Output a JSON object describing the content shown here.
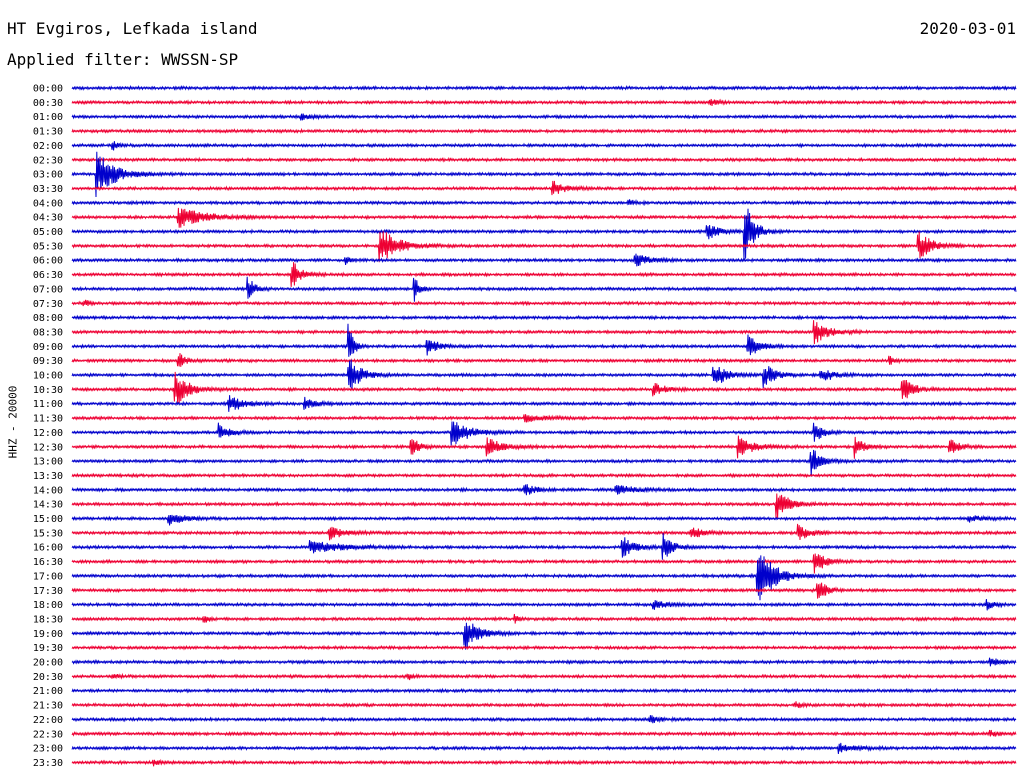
{
  "header": {
    "station": "HT Evgiros, Lefkada island",
    "date": "2020-03-01",
    "filter": "Applied filter: WWSSN-SP"
  },
  "chart_data": {
    "type": "line",
    "title": "HT Evgiros, Lefkada island",
    "ylabel": "HHZ - 20000",
    "rows": [
      "00:00",
      "00:30",
      "01:00",
      "01:30",
      "02:00",
      "02:30",
      "03:00",
      "03:30",
      "04:00",
      "04:30",
      "05:00",
      "05:30",
      "06:00",
      "06:30",
      "07:00",
      "07:30",
      "08:00",
      "08:30",
      "09:00",
      "09:30",
      "10:00",
      "10:30",
      "11:00",
      "11:30",
      "12:00",
      "12:30",
      "13:00",
      "13:30",
      "14:00",
      "14:30",
      "15:00",
      "15:30",
      "16:00",
      "16:30",
      "17:00",
      "17:30",
      "18:00",
      "18:30",
      "19:00",
      "19:30",
      "20:00",
      "20:30",
      "21:00",
      "21:30",
      "22:00",
      "22:30",
      "23:00",
      "23:30"
    ],
    "row_colors": [
      "#0000cc",
      "#ee0033"
    ],
    "x_range_minutes": [
      0,
      30
    ],
    "grid": false,
    "events": [
      {
        "row": "00:30",
        "minute": 20.3,
        "amp": 0.25,
        "dur": 0.6
      },
      {
        "row": "01:00",
        "minute": 7.3,
        "amp": 0.3,
        "dur": 0.6
      },
      {
        "row": "02:00",
        "minute": 1.3,
        "amp": 0.5,
        "dur": 0.3
      },
      {
        "row": "03:00",
        "minute": 0.8,
        "amp": 2.2,
        "dur": 1.2
      },
      {
        "row": "03:30",
        "minute": 15.3,
        "amp": 0.7,
        "dur": 0.8
      },
      {
        "row": "03:30",
        "minute": 30.0,
        "amp": 0.4,
        "dur": 0.4
      },
      {
        "row": "04:00",
        "minute": 17.7,
        "amp": 0.4,
        "dur": 0.3
      },
      {
        "row": "04:30",
        "minute": 3.4,
        "amp": 1.0,
        "dur": 1.8
      },
      {
        "row": "05:00",
        "minute": 20.2,
        "amp": 0.8,
        "dur": 0.8
      },
      {
        "row": "05:00",
        "minute": 21.4,
        "amp": 3.0,
        "dur": 0.6
      },
      {
        "row": "05:30",
        "minute": 9.8,
        "amp": 1.8,
        "dur": 1.2
      },
      {
        "row": "05:30",
        "minute": 26.9,
        "amp": 1.4,
        "dur": 0.9
      },
      {
        "row": "06:00",
        "minute": 17.9,
        "amp": 0.6,
        "dur": 1.0
      },
      {
        "row": "06:00",
        "minute": 8.7,
        "amp": 0.4,
        "dur": 0.4
      },
      {
        "row": "06:30",
        "minute": 7.0,
        "amp": 1.3,
        "dur": 0.7
      },
      {
        "row": "07:00",
        "minute": 5.6,
        "amp": 1.4,
        "dur": 0.4
      },
      {
        "row": "07:00",
        "minute": 10.9,
        "amp": 1.4,
        "dur": 0.3
      },
      {
        "row": "07:00",
        "minute": 30.0,
        "amp": 0.4,
        "dur": 0.3
      },
      {
        "row": "07:30",
        "minute": 0.4,
        "amp": 0.3,
        "dur": 0.4
      },
      {
        "row": "08:30",
        "minute": 23.6,
        "amp": 1.2,
        "dur": 0.9
      },
      {
        "row": "09:00",
        "minute": 8.8,
        "amp": 2.6,
        "dur": 0.3
      },
      {
        "row": "09:00",
        "minute": 11.3,
        "amp": 0.9,
        "dur": 0.7
      },
      {
        "row": "09:00",
        "minute": 21.5,
        "amp": 1.2,
        "dur": 0.7
      },
      {
        "row": "09:30",
        "minute": 3.4,
        "amp": 0.8,
        "dur": 0.4
      },
      {
        "row": "09:30",
        "minute": 26.0,
        "amp": 0.4,
        "dur": 0.4
      },
      {
        "row": "10:00",
        "minute": 8.8,
        "amp": 1.8,
        "dur": 0.8
      },
      {
        "row": "10:00",
        "minute": 20.4,
        "amp": 1.3,
        "dur": 0.8
      },
      {
        "row": "10:00",
        "minute": 22.0,
        "amp": 1.2,
        "dur": 0.7
      },
      {
        "row": "10:00",
        "minute": 23.8,
        "amp": 0.8,
        "dur": 0.8
      },
      {
        "row": "10:30",
        "minute": 3.3,
        "amp": 1.9,
        "dur": 0.8
      },
      {
        "row": "10:30",
        "minute": 18.5,
        "amp": 0.6,
        "dur": 0.8
      },
      {
        "row": "10:30",
        "minute": 26.4,
        "amp": 1.3,
        "dur": 0.7
      },
      {
        "row": "11:00",
        "minute": 5.0,
        "amp": 0.9,
        "dur": 1.0
      },
      {
        "row": "11:00",
        "minute": 7.4,
        "amp": 0.6,
        "dur": 0.8
      },
      {
        "row": "11:30",
        "minute": 14.4,
        "amp": 0.4,
        "dur": 1.0
      },
      {
        "row": "12:00",
        "minute": 4.7,
        "amp": 0.9,
        "dur": 0.7
      },
      {
        "row": "12:00",
        "minute": 12.1,
        "amp": 1.3,
        "dur": 1.1
      },
      {
        "row": "12:00",
        "minute": 23.6,
        "amp": 1.2,
        "dur": 0.5
      },
      {
        "row": "12:30",
        "minute": 10.8,
        "amp": 1.0,
        "dur": 0.5
      },
      {
        "row": "12:30",
        "minute": 13.2,
        "amp": 0.9,
        "dur": 1.0
      },
      {
        "row": "12:30",
        "minute": 21.2,
        "amp": 1.2,
        "dur": 0.9
      },
      {
        "row": "12:30",
        "minute": 24.9,
        "amp": 1.1,
        "dur": 0.5
      },
      {
        "row": "12:30",
        "minute": 27.9,
        "amp": 0.8,
        "dur": 0.6
      },
      {
        "row": "13:00",
        "minute": 23.5,
        "amp": 1.5,
        "dur": 0.6
      },
      {
        "row": "14:00",
        "minute": 14.4,
        "amp": 0.6,
        "dur": 0.7
      },
      {
        "row": "14:00",
        "minute": 17.3,
        "amp": 0.5,
        "dur": 1.2
      },
      {
        "row": "14:30",
        "minute": 22.4,
        "amp": 1.8,
        "dur": 0.7
      },
      {
        "row": "15:00",
        "minute": 3.1,
        "amp": 0.6,
        "dur": 1.0
      },
      {
        "row": "15:00",
        "minute": 28.5,
        "amp": 0.3,
        "dur": 1.0
      },
      {
        "row": "15:30",
        "minute": 8.2,
        "amp": 0.7,
        "dur": 0.9
      },
      {
        "row": "15:30",
        "minute": 19.7,
        "amp": 0.6,
        "dur": 0.8
      },
      {
        "row": "15:30",
        "minute": 23.1,
        "amp": 0.8,
        "dur": 0.7
      },
      {
        "row": "16:00",
        "minute": 17.5,
        "amp": 1.2,
        "dur": 0.7
      },
      {
        "row": "16:00",
        "minute": 18.8,
        "amp": 1.3,
        "dur": 0.6
      },
      {
        "row": "16:00",
        "minute": 7.6,
        "amp": 0.6,
        "dur": 2.0
      },
      {
        "row": "16:30",
        "minute": 23.6,
        "amp": 1.5,
        "dur": 0.6
      },
      {
        "row": "17:00",
        "minute": 21.8,
        "amp": 3.2,
        "dur": 1.0
      },
      {
        "row": "17:30",
        "minute": 23.7,
        "amp": 1.3,
        "dur": 0.5
      },
      {
        "row": "18:00",
        "minute": 18.5,
        "amp": 0.4,
        "dur": 0.9
      },
      {
        "row": "18:00",
        "minute": 29.1,
        "amp": 0.5,
        "dur": 0.4
      },
      {
        "row": "18:30",
        "minute": 4.2,
        "amp": 0.4,
        "dur": 0.3
      },
      {
        "row": "18:30",
        "minute": 14.1,
        "amp": 0.4,
        "dur": 0.3
      },
      {
        "row": "19:00",
        "minute": 12.5,
        "amp": 1.6,
        "dur": 0.9
      },
      {
        "row": "20:00",
        "minute": 29.2,
        "amp": 0.4,
        "dur": 0.7
      },
      {
        "row": "20:30",
        "minute": 1.3,
        "amp": 0.3,
        "dur": 0.3
      },
      {
        "row": "20:30",
        "minute": 10.7,
        "amp": 0.3,
        "dur": 0.3
      },
      {
        "row": "21:30",
        "minute": 23.0,
        "amp": 0.3,
        "dur": 0.5
      },
      {
        "row": "22:00",
        "minute": 18.4,
        "amp": 0.4,
        "dur": 0.6
      },
      {
        "row": "22:30",
        "minute": 29.2,
        "amp": 0.3,
        "dur": 0.6
      },
      {
        "row": "23:00",
        "minute": 24.4,
        "amp": 0.5,
        "dur": 1.0
      },
      {
        "row": "23:30",
        "minute": 2.6,
        "amp": 0.3,
        "dur": 0.4
      }
    ]
  }
}
